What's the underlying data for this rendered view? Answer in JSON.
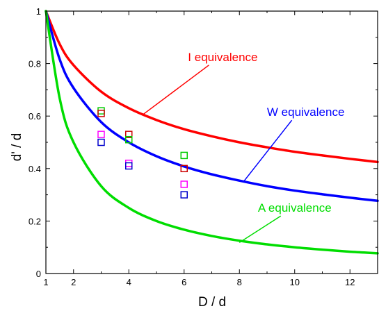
{
  "chart_data": {
    "type": "line",
    "title": "",
    "xlabel": "D / d",
    "ylabel": "d' / d",
    "xlim": [
      1,
      13
    ],
    "ylim": [
      0,
      1
    ],
    "x_ticks": [
      1,
      2,
      4,
      6,
      8,
      10,
      12
    ],
    "y_ticks": [
      0,
      0.2,
      0.4,
      0.6,
      0.8,
      1
    ],
    "x_tick_labels": [
      "1",
      "2",
      "4",
      "6",
      "8",
      "10",
      "12"
    ],
    "y_tick_labels": [
      "0",
      "0.2",
      "0.4",
      "0.6",
      "0.8",
      "1"
    ],
    "grid": false,
    "series": [
      {
        "name": "I equivalence",
        "color": "#ff0000",
        "x": [
          1,
          1.5,
          2,
          3,
          4,
          5,
          6,
          7,
          8,
          9,
          10,
          11,
          12,
          13
        ],
        "y": [
          1.0,
          0.874,
          0.794,
          0.693,
          0.63,
          0.585,
          0.55,
          0.523,
          0.5,
          0.481,
          0.464,
          0.45,
          0.437,
          0.425
        ]
      },
      {
        "name": "W equivalence",
        "color": "#0000ff",
        "x": [
          1,
          1.5,
          2,
          3,
          4,
          5,
          6,
          7,
          8,
          9,
          10,
          11,
          12,
          13
        ],
        "y": [
          1.0,
          0.816,
          0.707,
          0.577,
          0.5,
          0.447,
          0.408,
          0.378,
          0.354,
          0.333,
          0.316,
          0.302,
          0.289,
          0.277
        ]
      },
      {
        "name": "A equivalence",
        "color": "#00dd00",
        "x": [
          1,
          1.5,
          2,
          3,
          4,
          5,
          6,
          7,
          8,
          9,
          10,
          11,
          12,
          13
        ],
        "y": [
          1.0,
          0.667,
          0.5,
          0.333,
          0.25,
          0.2,
          0.167,
          0.143,
          0.125,
          0.111,
          0.1,
          0.091,
          0.083,
          0.077
        ]
      }
    ],
    "markers": [
      {
        "color": "#00cc00",
        "x": 3,
        "y": 0.62
      },
      {
        "color": "#cc0000",
        "x": 3,
        "y": 0.61
      },
      {
        "color": "#ff00ff",
        "x": 3,
        "y": 0.53
      },
      {
        "color": "#0000cc",
        "x": 3,
        "y": 0.5
      },
      {
        "color": "#cc0000",
        "x": 4,
        "y": 0.53
      },
      {
        "color": "#00cc00",
        "x": 4,
        "y": 0.51
      },
      {
        "color": "#ff00ff",
        "x": 4,
        "y": 0.42
      },
      {
        "color": "#0000cc",
        "x": 4,
        "y": 0.41
      },
      {
        "color": "#00cc00",
        "x": 6,
        "y": 0.45
      },
      {
        "color": "#cc0000",
        "x": 6,
        "y": 0.4
      },
      {
        "color": "#ff00ff",
        "x": 6,
        "y": 0.34
      },
      {
        "color": "#0000cc",
        "x": 6,
        "y": 0.3
      }
    ],
    "annotations": [
      {
        "text": "I equivalence",
        "color": "#ff0000",
        "x": 7.4,
        "y": 0.81,
        "arrow_to_x": 4.5,
        "arrow_to_y": 0.605
      },
      {
        "text": "W equivalence",
        "color": "#0000ff",
        "x": 10.4,
        "y": 0.6,
        "arrow_to_x": 8.15,
        "arrow_to_y": 0.35
      },
      {
        "text": "A equivalence",
        "color": "#00dd00",
        "x": 10.0,
        "y": 0.235,
        "arrow_to_x": 8.0,
        "arrow_to_y": 0.118
      }
    ]
  }
}
